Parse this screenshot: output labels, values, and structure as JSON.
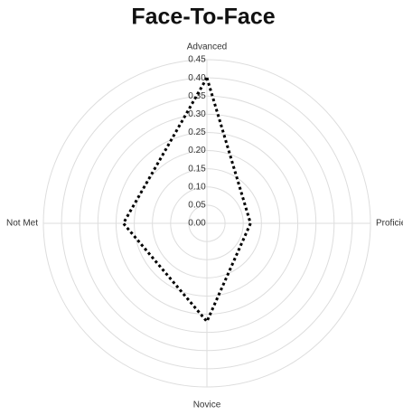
{
  "chart_data": {
    "type": "radar",
    "title": "Face-To-Face",
    "categories": [
      "Advanced",
      "Proficient",
      "Novice",
      "Not Met"
    ],
    "series": [
      {
        "name": "Face-To-Face",
        "color": "#000000",
        "values": [
          0.4,
          0.12,
          0.27,
          0.23
        ]
      }
    ],
    "ylim": [
      0,
      0.45
    ],
    "yticks": [
      {
        "value": 0,
        "label": "0.00"
      },
      {
        "value": 0.05,
        "label": "0.05"
      },
      {
        "value": 0.1,
        "label": "0.10"
      },
      {
        "value": 0.15,
        "label": "0.15"
      },
      {
        "value": 0.2,
        "label": "0.20"
      },
      {
        "value": 0.25,
        "label": "0.25"
      },
      {
        "value": 0.3,
        "label": "0.30"
      },
      {
        "value": 0.35,
        "label": "0.35"
      },
      {
        "value": 0.4,
        "label": "0.40"
      },
      {
        "value": 0.45,
        "label": "0.45"
      }
    ],
    "grid": true
  }
}
